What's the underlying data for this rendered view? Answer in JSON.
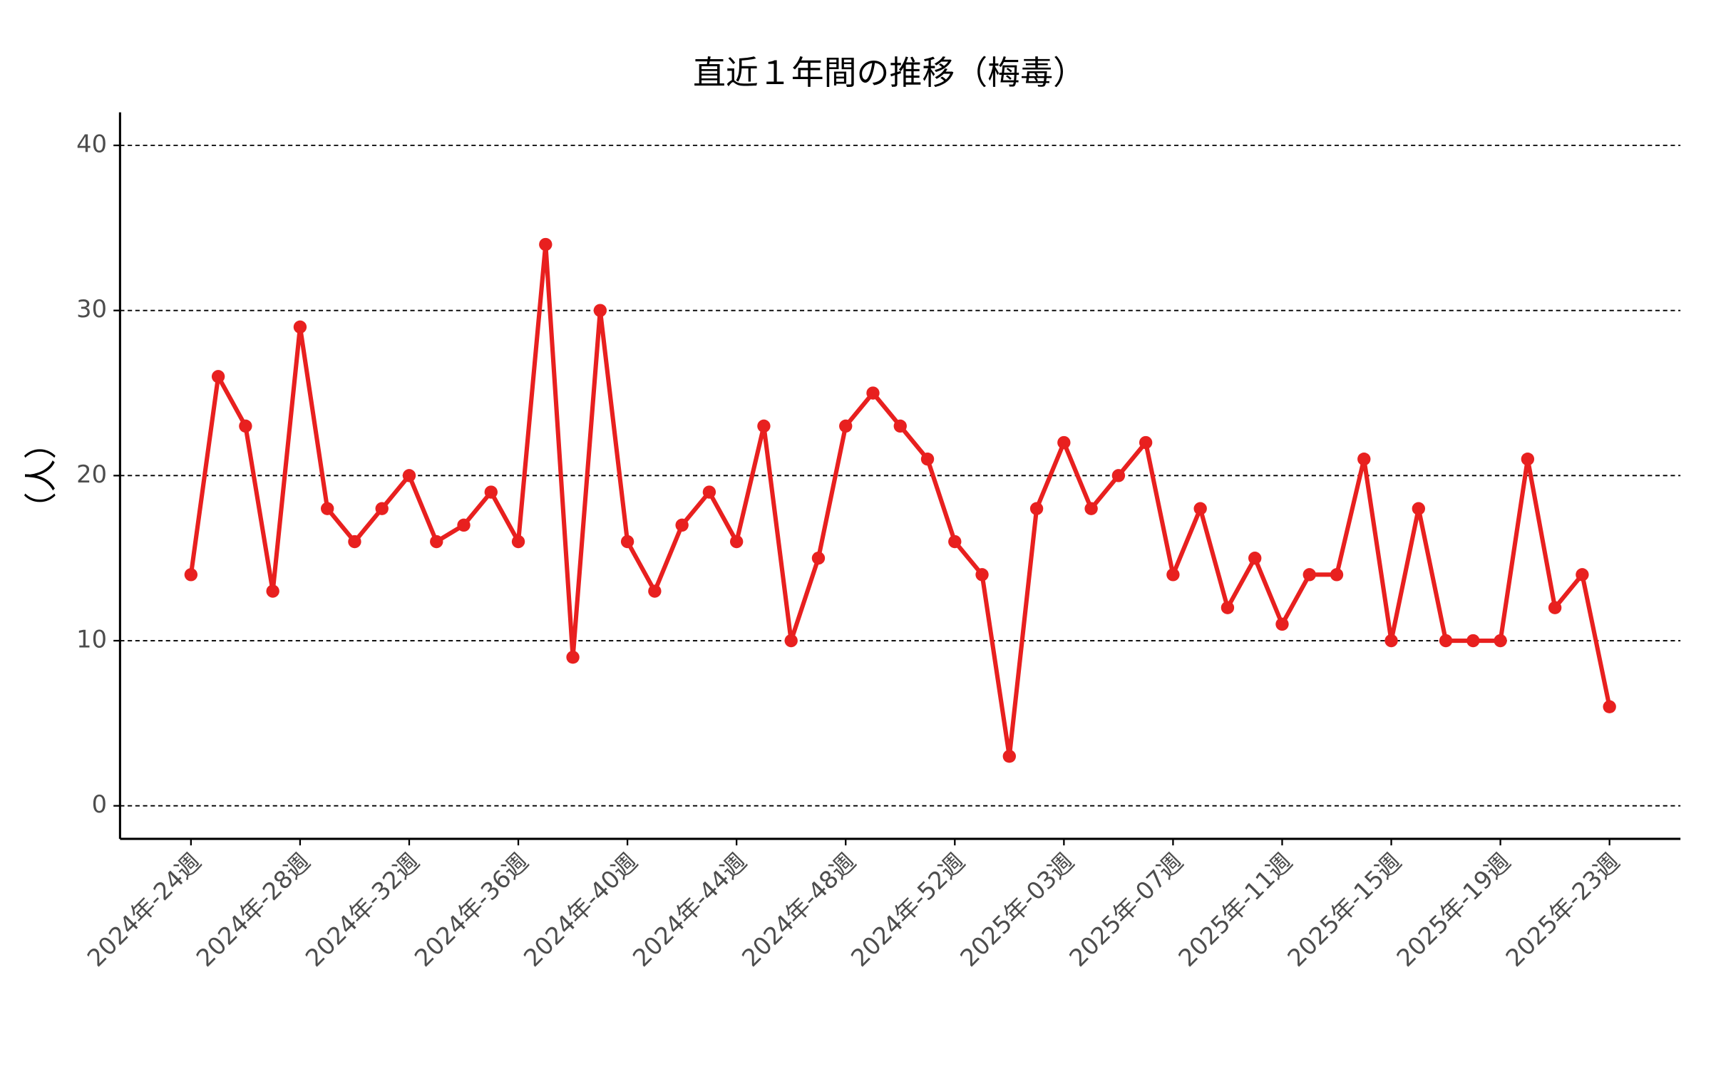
{
  "chart_data": {
    "type": "line",
    "title": "直近１年間の推移（梅毒）",
    "y_label": "（人）",
    "categories": [
      "2024年-24週",
      null,
      null,
      null,
      "2024年-28週",
      null,
      null,
      null,
      "2024年-32週",
      null,
      null,
      null,
      "2024年-36週",
      null,
      null,
      null,
      "2024年-40週",
      null,
      null,
      null,
      "2024年-44週",
      null,
      null,
      null,
      "2024年-48週",
      null,
      null,
      null,
      "2024年-52週",
      null,
      null,
      null,
      "2025年-03週",
      null,
      null,
      null,
      "2025年-07週",
      null,
      null,
      null,
      "2025年-11週",
      null,
      null,
      null,
      "2025年-15週",
      null,
      null,
      null,
      "2025年-19週",
      null,
      null,
      null,
      "2025年-23週"
    ],
    "series": [
      {
        "name": "梅毒",
        "color": "#e8201f",
        "values": [
          14,
          26,
          23,
          13,
          29,
          18,
          16,
          18,
          20,
          16,
          17,
          19,
          16,
          34,
          9,
          30,
          16,
          13,
          17,
          19,
          16,
          23,
          10,
          15,
          23,
          25,
          23,
          21,
          16,
          14,
          3,
          18,
          22,
          18,
          20,
          22,
          14,
          18,
          12,
          15,
          11,
          14,
          14,
          21,
          10,
          18,
          10,
          10,
          10,
          21,
          12,
          14,
          6
        ]
      }
    ],
    "ylim": [
      -2,
      42
    ],
    "yticks": [
      0,
      10,
      20,
      30,
      40
    ],
    "grid": true
  }
}
